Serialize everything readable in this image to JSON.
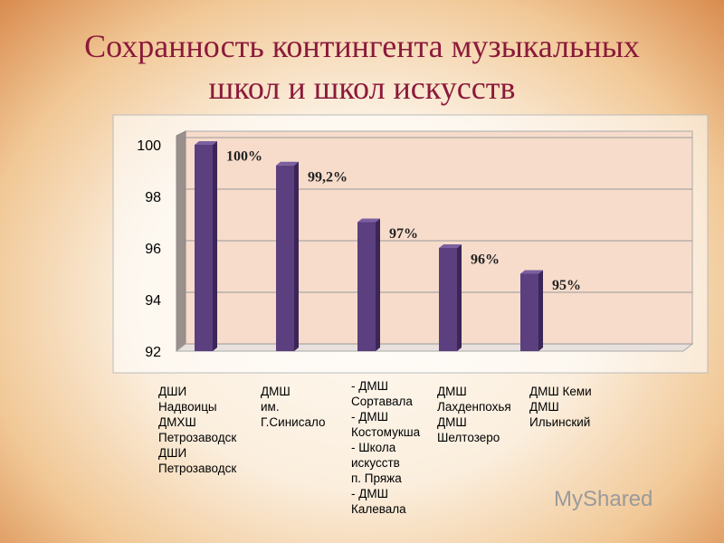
{
  "chart_data": {
    "type": "bar",
    "title": "Сохранность контингента музыкальных школ и школ искусств",
    "categories": [
      "ДШИ\nНадвоицы\nДМХШ\nПетрозаводск\nДШИ\nПетрозаводск",
      "ДМШ\nим.\nГ.Синисало",
      "- ДМШ\nСортавала\n- ДМШ\nКостомукша\n- Школа\nискусств\nп. Пряжа\n- ДМШ\nКалевала",
      "ДМШ\nЛахденпохья\nДМШ\nШелтозеро",
      "ДМШ Кеми\nДМШ\nИльинский"
    ],
    "values": [
      100,
      99.2,
      97,
      96,
      95
    ],
    "value_labels": [
      "100%",
      "99,2%",
      "97%",
      "96%",
      "95%"
    ],
    "color": "#5b3f7e",
    "ylim": [
      92,
      100
    ],
    "yticks": [
      92,
      94,
      96,
      98,
      100
    ],
    "grid": true
  },
  "watermark": "MyShared"
}
